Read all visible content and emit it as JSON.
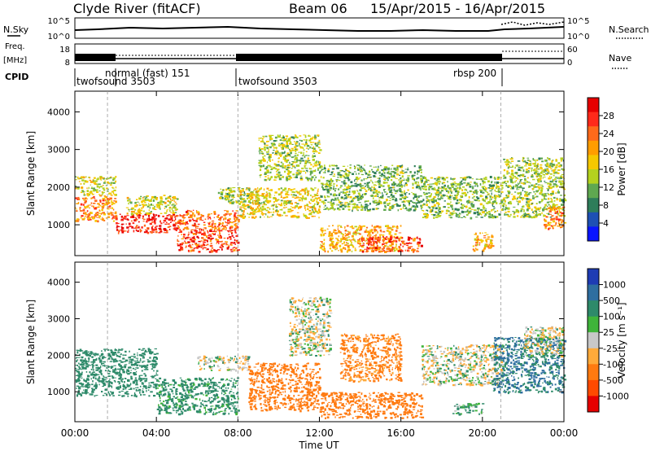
{
  "header": {
    "station": "Clyde River (fitACF)",
    "beam": "Beam 06",
    "dates": "15/Apr/2015 - 16/Apr/2015"
  },
  "nsky_panel": {
    "left_label": "N.Sky",
    "right_label": "N.Search",
    "left_ticks": [
      "10^5",
      "10^0"
    ],
    "right_ticks": [
      "10^5",
      "10^0"
    ]
  },
  "freq_panel": {
    "left_label_line1": "Freq.",
    "left_label_line2": "[MHz]",
    "left_ticks": [
      "18",
      "8"
    ],
    "right_ticks": [
      "60",
      "0"
    ],
    "right_label": "Nave"
  },
  "cpid_panel": {
    "label": "CPID",
    "segments": [
      {
        "start_hour": 0,
        "name": "twofsound 3503"
      },
      {
        "start_hour": 1.6,
        "name": "normal (fast) 151"
      },
      {
        "start_hour": 8.0,
        "name": "twofsound 3503"
      },
      {
        "start_hour": 20.9,
        "name": "rbsp 200"
      }
    ]
  },
  "x_axis": {
    "label": "Time UT",
    "ticks": [
      "00:00",
      "04:00",
      "08:00",
      "12:00",
      "16:00",
      "20:00",
      "00:00"
    ],
    "range_hours": [
      0,
      24
    ]
  },
  "power_panel": {
    "ylabel": "Slant Range [km]",
    "yticks": [
      "4000",
      "3000",
      "2000",
      "1000"
    ],
    "ytick_values": [
      4000,
      3000,
      2000,
      1000
    ],
    "ylim_km": [
      180,
      4550
    ],
    "colorbar_label": "Power [dB]",
    "colorbar_ticks": [
      "28",
      "24",
      "20",
      "16",
      "12",
      "8",
      "4"
    ],
    "colorbar_colors": [
      "#e60000",
      "#ff2a1a",
      "#ff6a1a",
      "#ff9d00",
      "#f5c800",
      "#b4d21e",
      "#5fa850",
      "#2e7d5a",
      "#1e50b4",
      "#0a14ff"
    ]
  },
  "velocity_panel": {
    "ylabel": "Slant Range [km]",
    "yticks": [
      "4000",
      "3000",
      "2000",
      "1000"
    ],
    "ytick_values": [
      4000,
      3000,
      2000,
      1000
    ],
    "ylim_km": [
      180,
      4550
    ],
    "colorbar_label": "Velocity [m s⁻¹]",
    "colorbar_ticks": [
      "1000",
      "500",
      "100",
      "25",
      "-25",
      "-100",
      "-500",
      "-1000"
    ],
    "colorbar_colors": [
      "#1e3cb4",
      "#2e6ea0",
      "#2e8a6a",
      "#3fb43a",
      "#c8c8c8",
      "#ffaa3a",
      "#ff7a10",
      "#ff4a00",
      "#e60000"
    ]
  },
  "chart_data": {
    "type": "heatmap",
    "panels": [
      {
        "name": "Power",
        "units": "dB",
        "x_units": "hours UT",
        "y_units": "km",
        "regions": [
          {
            "t": [
              0.0,
              2.0
            ],
            "r": [
              1100,
              1800
            ],
            "v": 20
          },
          {
            "t": [
              0.0,
              2.0
            ],
            "r": [
              1800,
              2300
            ],
            "v": 13
          },
          {
            "t": [
              2.0,
              5.0
            ],
            "r": [
              800,
              1300
            ],
            "v": 26
          },
          {
            "t": [
              2.5,
              5.0
            ],
            "r": [
              1300,
              1800
            ],
            "v": 14
          },
          {
            "t": [
              5.0,
              8.0
            ],
            "r": [
              300,
              900
            ],
            "v": 24
          },
          {
            "t": [
              5.0,
              8.0
            ],
            "r": [
              900,
              1400
            ],
            "v": 22
          },
          {
            "t": [
              7.0,
              9.0
            ],
            "r": [
              1600,
              2000
            ],
            "v": 12
          },
          {
            "t": [
              8.0,
              12.0
            ],
            "r": [
              1200,
              2000
            ],
            "v": 15
          },
          {
            "t": [
              9.0,
              12.0
            ],
            "r": [
              2200,
              3400
            ],
            "v": 12
          },
          {
            "t": [
              12.0,
              16.0
            ],
            "r": [
              300,
              1000
            ],
            "v": 18
          },
          {
            "t": [
              12.0,
              17.0
            ],
            "r": [
              1400,
              2600
            ],
            "v": 10
          },
          {
            "t": [
              14.0,
              17.0
            ],
            "r": [
              300,
              700
            ],
            "v": 24
          },
          {
            "t": [
              17.0,
              21.0
            ],
            "r": [
              1200,
              2300
            ],
            "v": 11
          },
          {
            "t": [
              19.5,
              20.5
            ],
            "r": [
              300,
              800
            ],
            "v": 18
          },
          {
            "t": [
              21.0,
              24.0
            ],
            "r": [
              1200,
              2800
            ],
            "v": 12
          },
          {
            "t": [
              23.0,
              24.0
            ],
            "r": [
              900,
              1500
            ],
            "v": 20
          }
        ]
      },
      {
        "name": "Velocity",
        "units": "m s^-1",
        "x_units": "hours UT",
        "y_units": "km",
        "regions": [
          {
            "t": [
              0.0,
              4.0
            ],
            "r": [
              900,
              2200
            ],
            "v": 200
          },
          {
            "t": [
              4.0,
              8.0
            ],
            "r": [
              400,
              1400
            ],
            "v": 120
          },
          {
            "t": [
              6.0,
              8.5
            ],
            "r": [
              1600,
              2000
            ],
            "v": 0
          },
          {
            "t": [
              8.5,
              12.0
            ],
            "r": [
              500,
              1800
            ],
            "v": -300
          },
          {
            "t": [
              10.5,
              12.5
            ],
            "r": [
              2000,
              3600
            ],
            "v": 0
          },
          {
            "t": [
              12.0,
              17.0
            ],
            "r": [
              300,
              1000
            ],
            "v": -250
          },
          {
            "t": [
              13.0,
              16.0
            ],
            "r": [
              1300,
              2600
            ],
            "v": -150
          },
          {
            "t": [
              17.0,
              21.0
            ],
            "r": [
              1200,
              2300
            ],
            "v": 0
          },
          {
            "t": [
              18.5,
              20.0
            ],
            "r": [
              400,
              700
            ],
            "v": 80
          },
          {
            "t": [
              20.5,
              24.0
            ],
            "r": [
              1000,
              2500
            ],
            "v": 300
          },
          {
            "t": [
              22.0,
              24.0
            ],
            "r": [
              2000,
              2800
            ],
            "v": 0
          }
        ]
      }
    ]
  }
}
